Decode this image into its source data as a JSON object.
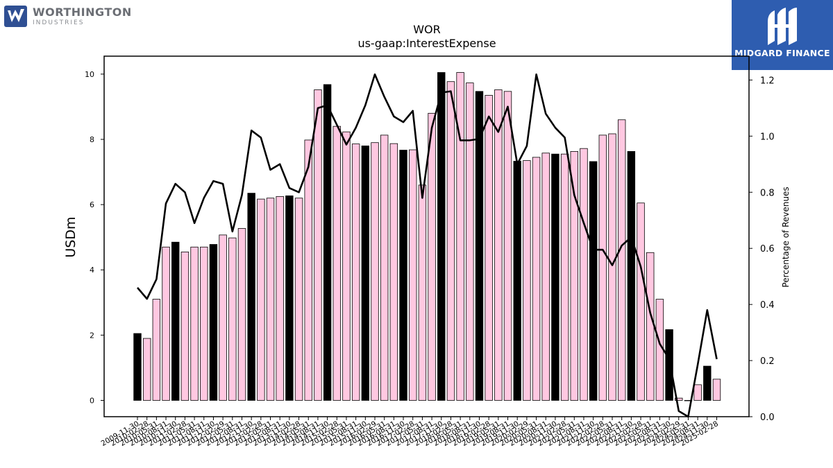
{
  "branding": {
    "company_name": "WORTHINGTON",
    "company_sub": "INDUSTRIES",
    "publisher": "MIDGARD FINANCE"
  },
  "colors": {
    "bar_fiscal_year": "#000000",
    "bar_quarter": "#ffc8e1",
    "line": "#000000",
    "publisher_bg": "#2e5db0"
  },
  "chart_data": {
    "type": "bar",
    "title": "WOR",
    "subtitle": "us-gaap:InterestExpense",
    "ylabel": "USDm",
    "y2label": "Percentage of Revenues",
    "ylim": [
      -0.5,
      10.55
    ],
    "y2lim": [
      0.0,
      1.285
    ],
    "yticks": [
      0,
      2,
      4,
      6,
      8,
      10
    ],
    "y2ticks": [
      "0.0",
      "0.2",
      "0.4",
      "0.6",
      "0.8",
      "1.0",
      "1.2"
    ],
    "grid": false,
    "x": [
      "2009-11-30",
      "2010-02-28",
      "2010-05-31",
      "2010-08-31",
      "2010-11-30",
      "2011-02-28",
      "2011-05-31",
      "2011-08-31",
      "2011-11-30",
      "2012-02-29",
      "2012-05-31",
      "2012-08-31",
      "2012-11-30",
      "2013-02-28",
      "2013-05-31",
      "2013-08-31",
      "2013-11-30",
      "2014-02-28",
      "2014-05-31",
      "2014-08-31",
      "2014-11-30",
      "2015-02-28",
      "2015-05-31",
      "2015-08-31",
      "2015-11-30",
      "2016-02-29",
      "2016-05-31",
      "2016-08-31",
      "2016-11-30",
      "2017-02-28",
      "2017-05-31",
      "2017-08-31",
      "2017-11-30",
      "2018-02-28",
      "2018-05-31",
      "2018-08-31",
      "2018-11-30",
      "2019-02-28",
      "2019-05-31",
      "2019-08-31",
      "2019-11-30",
      "2020-02-29",
      "2020-05-31",
      "2020-08-31",
      "2020-11-30",
      "2021-02-28",
      "2021-05-31",
      "2021-08-31",
      "2021-11-30",
      "2022-02-28",
      "2022-05-31",
      "2022-08-31",
      "2022-11-30",
      "2023-02-28",
      "2023-05-31",
      "2023-08-31",
      "2023-11-30",
      "2024-02-29",
      "2024-05-31",
      "2024-08-31",
      "2024-11-30",
      "2025-02-28"
    ],
    "series": [
      {
        "values": [
          2.05,
          1.9,
          3.1,
          4.7,
          4.85,
          4.55,
          4.7,
          4.7,
          4.78,
          5.07,
          4.98,
          5.27,
          6.35,
          6.17,
          6.2,
          6.25,
          6.27,
          6.2,
          7.98,
          9.52,
          9.68,
          8.4,
          8.23,
          7.86,
          7.8,
          7.9,
          8.13,
          7.87,
          7.67,
          7.68,
          6.6,
          8.8,
          10.05,
          9.77,
          10.05,
          9.73,
          9.47,
          9.35,
          9.52,
          9.47,
          7.33,
          7.35,
          7.45,
          7.58,
          7.55,
          7.55,
          7.63,
          7.72,
          7.32,
          8.13,
          8.17,
          8.6,
          7.63,
          6.05,
          4.53,
          3.1,
          2.17,
          0.07,
          0.0,
          0.48,
          1.05,
          0.65
        ],
        "fiscal_year_end": [
          true,
          false,
          false,
          false,
          true,
          false,
          false,
          false,
          true,
          false,
          false,
          false,
          true,
          false,
          false,
          false,
          true,
          false,
          false,
          false,
          true,
          false,
          false,
          false,
          true,
          false,
          false,
          false,
          true,
          false,
          false,
          false,
          true,
          false,
          false,
          false,
          true,
          false,
          false,
          false,
          true,
          false,
          false,
          false,
          true,
          false,
          false,
          false,
          true,
          false,
          false,
          false,
          true,
          false,
          false,
          false,
          true,
          false,
          false,
          false,
          true,
          false
        ]
      },
      {
        "axis": "right",
        "values": [
          0.46,
          0.42,
          0.49,
          0.76,
          0.83,
          0.8,
          0.69,
          0.78,
          0.84,
          0.83,
          0.66,
          0.79,
          1.02,
          0.995,
          0.88,
          0.9,
          0.815,
          0.8,
          0.89,
          1.1,
          1.11,
          1.04,
          0.97,
          1.03,
          1.11,
          1.22,
          1.14,
          1.07,
          1.05,
          1.09,
          0.78,
          1.03,
          1.155,
          1.16,
          0.985,
          0.985,
          0.99,
          1.07,
          1.015,
          1.105,
          0.9,
          0.965,
          1.22,
          1.08,
          1.03,
          0.995,
          0.79,
          0.69,
          0.595,
          0.595,
          0.54,
          0.61,
          0.64,
          0.535,
          0.37,
          0.26,
          0.205,
          0.02,
          0.0,
          0.185,
          0.38,
          0.205
        ]
      }
    ]
  }
}
